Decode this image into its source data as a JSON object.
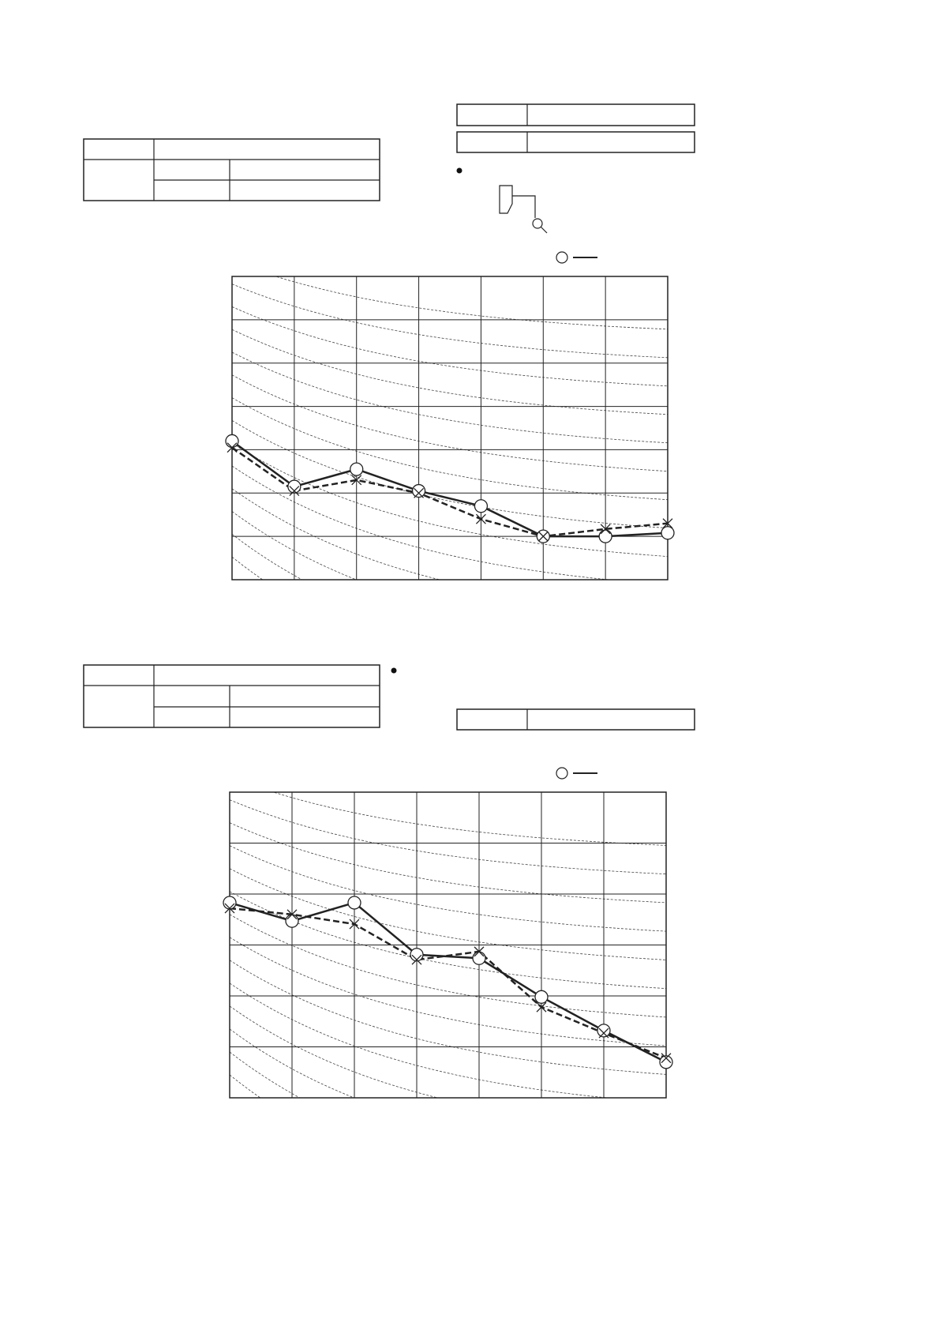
{
  "chart_data": [
    {
      "type": "line",
      "x": [
        0,
        1,
        2,
        3,
        4,
        5,
        6,
        7
      ],
      "xlim": [
        0,
        7
      ],
      "xticks": [
        0,
        1,
        2,
        3,
        4,
        5,
        6,
        7
      ],
      "ylim": [
        0,
        7
      ],
      "yticks": [
        0,
        1,
        2,
        3,
        4,
        5,
        6,
        7
      ],
      "grid": true,
      "series": [
        {
          "color": "#222222",
          "style": "solid",
          "marker": "circle",
          "values": [
            3.2,
            2.15,
            2.55,
            2.05,
            1.7,
            1.0,
            1.0,
            1.08
          ]
        },
        {
          "color": "#222222",
          "style": "dashed",
          "marker": "x",
          "values": [
            3.05,
            2.05,
            2.3,
            2.0,
            1.4,
            1.0,
            1.17,
            1.3
          ]
        }
      ]
    },
    {
      "type": "line",
      "x": [
        0,
        1,
        2,
        3,
        4,
        5,
        6,
        7
      ],
      "xlim": [
        0,
        7
      ],
      "xticks": [
        0,
        1,
        2,
        3,
        4,
        5,
        6,
        7
      ],
      "ylim": [
        0,
        6
      ],
      "yticks": [
        0,
        1,
        2,
        3,
        4,
        5,
        6
      ],
      "grid": true,
      "series": [
        {
          "color": "#222222",
          "style": "solid",
          "marker": "circle",
          "values": [
            3.83,
            3.47,
            3.83,
            2.81,
            2.74,
            1.98,
            1.32,
            0.7
          ]
        },
        {
          "color": "#222222",
          "style": "dashed",
          "marker": "x",
          "values": [
            3.72,
            3.6,
            3.41,
            2.71,
            2.87,
            1.78,
            1.27,
            0.78
          ]
        }
      ]
    }
  ]
}
